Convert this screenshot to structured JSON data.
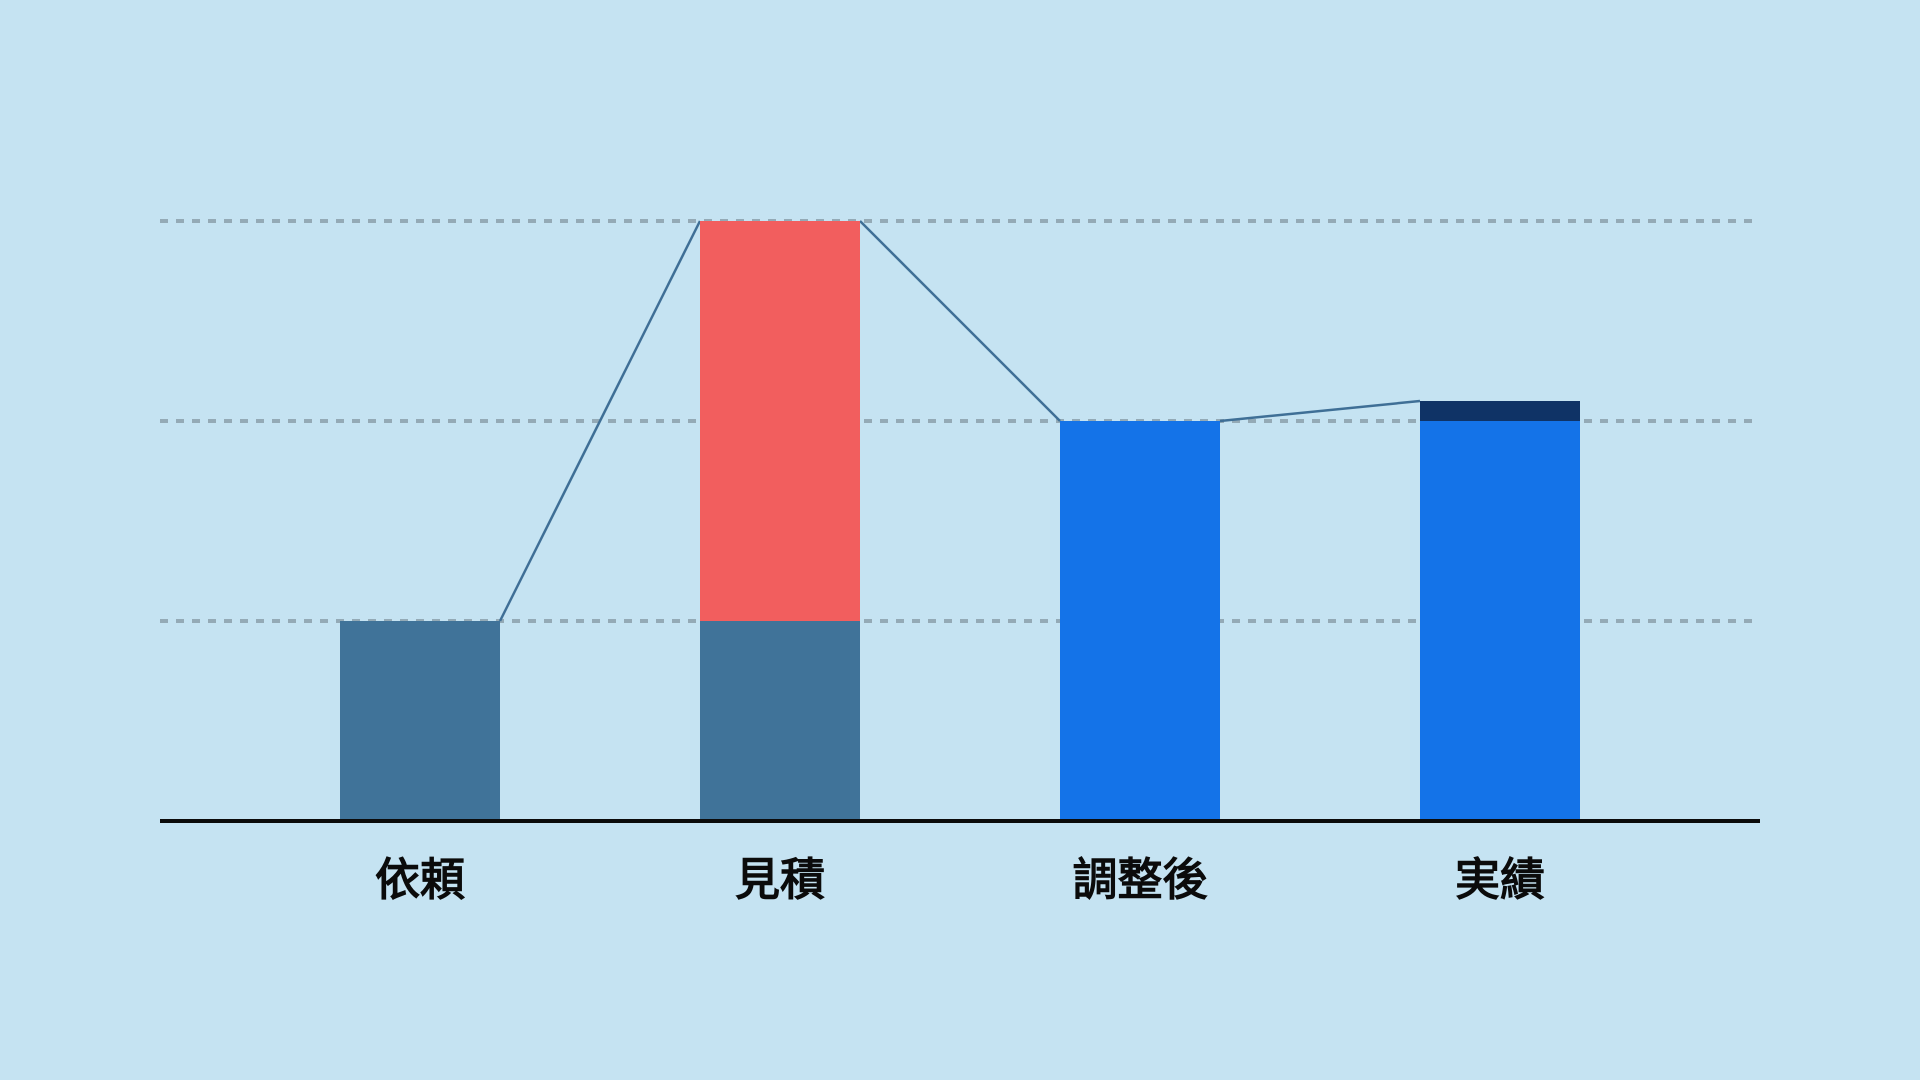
{
  "chart_data": {
    "type": "bar",
    "stacked": true,
    "title": "",
    "xlabel": "",
    "ylabel": "",
    "categories": [
      "依頼",
      "見積",
      "調整後",
      "実績"
    ],
    "ylim": [
      0,
      3
    ],
    "yticks": [
      1,
      2,
      3
    ],
    "grid": true,
    "legend": "none",
    "segments": [
      [
        {
          "value": 1,
          "color": "#407399"
        }
      ],
      [
        {
          "value": 1,
          "color": "#407399"
        },
        {
          "value": 2,
          "color": "#f25e5e"
        }
      ],
      [
        {
          "value": 2,
          "color": "#1473e8"
        }
      ],
      [
        {
          "value": 2,
          "color": "#1473e8"
        },
        {
          "value": 0.1,
          "color": "#0f3366"
        }
      ]
    ],
    "connector_color": "#407399"
  }
}
